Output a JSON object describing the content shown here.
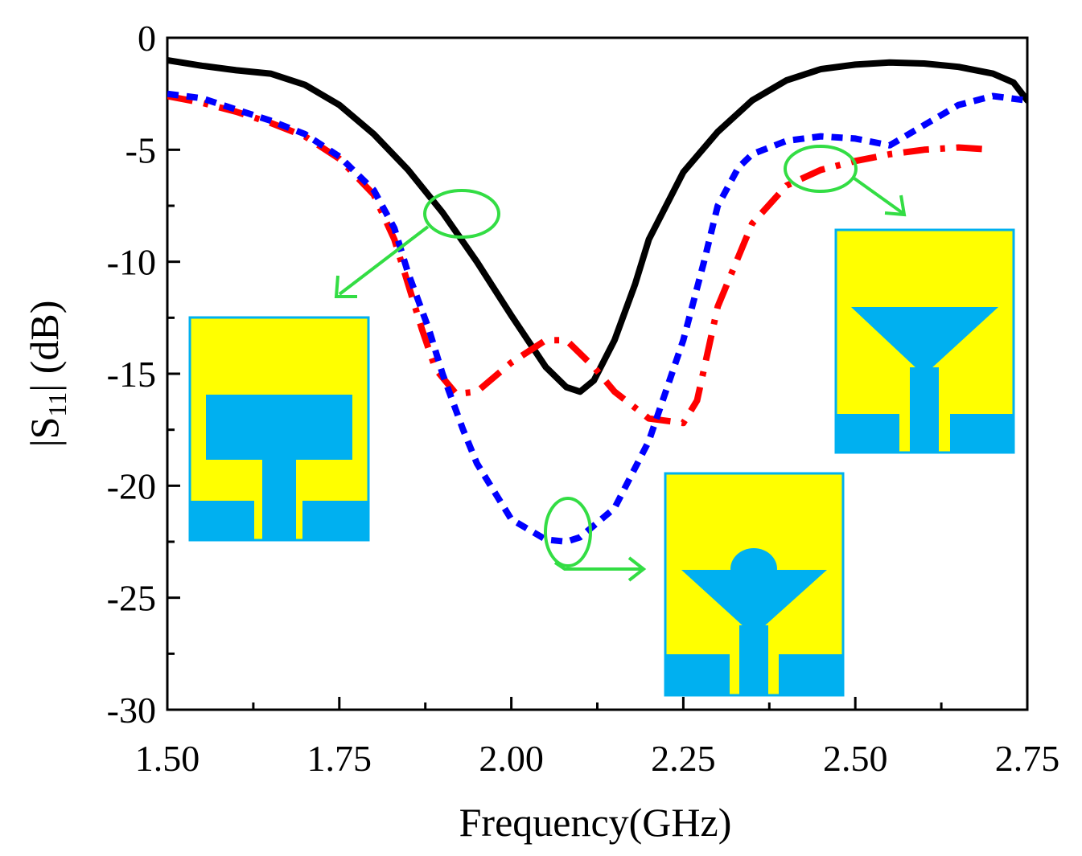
{
  "chart_data": {
    "type": "line",
    "xlabel": "Frequency(GHz)",
    "ylabel_parts": {
      "pre": "|S",
      "sub": "11",
      "post": "| (dB)"
    },
    "xlim": [
      1.5,
      2.75
    ],
    "ylim": [
      -30,
      0
    ],
    "x_ticks": [
      1.5,
      1.75,
      2.0,
      2.25,
      2.5,
      2.75
    ],
    "x_tick_labels": [
      "1.50",
      "1.75",
      "2.00",
      "2.25",
      "2.50",
      "2.75"
    ],
    "y_ticks": [
      0,
      -5,
      -10,
      -15,
      -20,
      -25,
      -30
    ],
    "y_tick_labels": [
      "0",
      "-5",
      "-10",
      "-15",
      "-20",
      "-25",
      "-30"
    ],
    "grid": false,
    "series": [
      {
        "color": "#000000",
        "style": "solid",
        "x": [
          1.5,
          1.55,
          1.6,
          1.65,
          1.7,
          1.75,
          1.8,
          1.85,
          1.9,
          1.95,
          2.0,
          2.05,
          2.08,
          2.1,
          2.12,
          2.15,
          2.18,
          2.2,
          2.25,
          2.3,
          2.35,
          2.4,
          2.45,
          2.5,
          2.55,
          2.6,
          2.65,
          2.7,
          2.73,
          2.75
        ],
        "y": [
          -1.0,
          -1.25,
          -1.45,
          -1.6,
          -2.1,
          -3.0,
          -4.3,
          -5.9,
          -7.8,
          -10.0,
          -12.4,
          -14.7,
          -15.6,
          -15.8,
          -15.3,
          -13.5,
          -11.0,
          -9.0,
          -6.0,
          -4.2,
          -2.8,
          -1.9,
          -1.4,
          -1.2,
          -1.1,
          -1.15,
          -1.3,
          -1.6,
          -2.0,
          -2.8
        ]
      },
      {
        "color": "#ff0000",
        "style": "dashdot",
        "x": [
          1.5,
          1.55,
          1.6,
          1.65,
          1.7,
          1.75,
          1.8,
          1.83,
          1.85,
          1.87,
          1.89,
          1.92,
          1.95,
          2.0,
          2.05,
          2.08,
          2.12,
          2.15,
          2.2,
          2.25,
          2.27,
          2.3,
          2.35,
          2.4,
          2.45,
          2.5,
          2.55,
          2.6,
          2.65,
          2.7
        ],
        "y": [
          -2.6,
          -2.9,
          -3.3,
          -3.8,
          -4.4,
          -5.4,
          -7.0,
          -9.0,
          -11.0,
          -13.0,
          -14.8,
          -15.9,
          -15.8,
          -14.5,
          -13.5,
          -13.5,
          -14.7,
          -15.8,
          -17.0,
          -17.2,
          -16.2,
          -12.0,
          -8.3,
          -6.6,
          -5.9,
          -5.5,
          -5.2,
          -5.0,
          -4.9,
          -5.0
        ]
      },
      {
        "color": "#0000ff",
        "style": "dotted",
        "x": [
          1.5,
          1.55,
          1.6,
          1.65,
          1.7,
          1.75,
          1.8,
          1.83,
          1.85,
          1.88,
          1.9,
          1.93,
          1.95,
          2.0,
          2.05,
          2.08,
          2.1,
          2.15,
          2.2,
          2.25,
          2.28,
          2.3,
          2.33,
          2.35,
          2.4,
          2.45,
          2.5,
          2.55,
          2.6,
          2.65,
          2.7,
          2.75
        ],
        "y": [
          -2.5,
          -2.7,
          -3.2,
          -3.7,
          -4.3,
          -5.3,
          -6.8,
          -8.5,
          -10.5,
          -13.0,
          -15.0,
          -17.5,
          -19.0,
          -21.5,
          -22.4,
          -22.5,
          -22.3,
          -21.0,
          -18.0,
          -13.5,
          -10.0,
          -7.5,
          -5.8,
          -5.2,
          -4.6,
          -4.4,
          -4.5,
          -4.8,
          -3.9,
          -3.0,
          -2.6,
          -2.8
        ]
      }
    ]
  }
}
